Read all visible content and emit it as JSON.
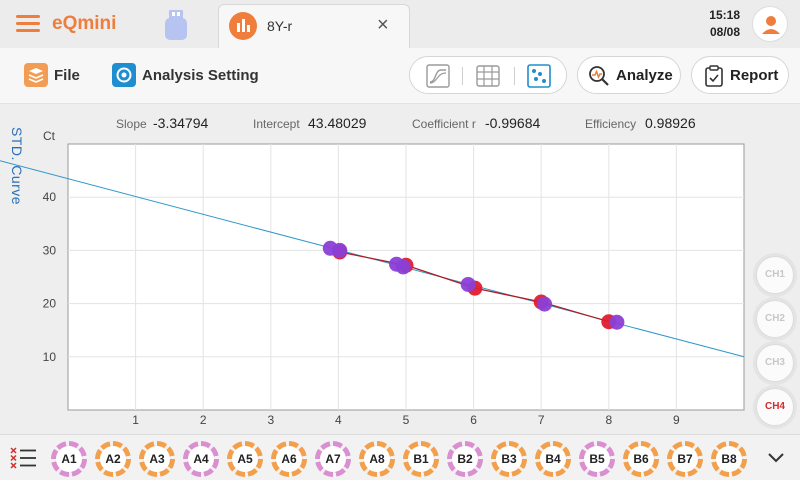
{
  "app": {
    "name": "eQmini"
  },
  "tab": {
    "label": "8Y-r",
    "close_icon": "×"
  },
  "clock": {
    "time": "15:18",
    "date": "08/08"
  },
  "toolbar": {
    "file_label": "File",
    "analysis_setting_label": "Analysis Setting",
    "analyze_label": "Analyze",
    "report_label": "Report",
    "views": [
      "amplification-curve-icon",
      "table-view-icon",
      "std-curve-view-icon"
    ]
  },
  "side_title": "STD. Curve",
  "stats": {
    "slope_label": "Slope",
    "slope_value": "-3.34794",
    "intercept_label": "Intercept",
    "intercept_value": "43.48029",
    "coefficient_label": "Coefficient r",
    "coefficient_value": "-0.99684",
    "efficiency_label": "Efficiency",
    "efficiency_value": "0.98926"
  },
  "channels": [
    {
      "label": "CH1",
      "active": false
    },
    {
      "label": "CH2",
      "active": false
    },
    {
      "label": "CH3",
      "active": false
    },
    {
      "label": "CH4",
      "active": true
    }
  ],
  "wells": [
    {
      "label": "A1",
      "ring": "#d98fd0"
    },
    {
      "label": "A2",
      "ring": "#f3a04e"
    },
    {
      "label": "A3",
      "ring": "#f3a04e"
    },
    {
      "label": "A4",
      "ring": "#d98fd0"
    },
    {
      "label": "A5",
      "ring": "#f3a04e"
    },
    {
      "label": "A6",
      "ring": "#f3a04e"
    },
    {
      "label": "A7",
      "ring": "#d98fd0"
    },
    {
      "label": "A8",
      "ring": "#f3a04e"
    },
    {
      "label": "B1",
      "ring": "#f3a04e"
    },
    {
      "label": "B2",
      "ring": "#d98fd0"
    },
    {
      "label": "B3",
      "ring": "#f3a04e"
    },
    {
      "label": "B4",
      "ring": "#f3a04e"
    },
    {
      "label": "B5",
      "ring": "#d98fd0"
    },
    {
      "label": "B6",
      "ring": "#f3a04e"
    },
    {
      "label": "B7",
      "ring": "#f3a04e"
    },
    {
      "label": "B8",
      "ring": "#f3a04e"
    }
  ],
  "colors": {
    "accent": "#ef7d3c",
    "fit_line": "#2f98c8",
    "red_series": "#e01e2e",
    "purple_series": "#8a3fd6",
    "red_line": "#b01b24"
  },
  "chart_data": {
    "type": "scatter",
    "ylabel": "Ct",
    "xlim": [
      0,
      10
    ],
    "ylim": [
      0,
      50
    ],
    "xticks": [
      1,
      2,
      3,
      4,
      5,
      6,
      7,
      8,
      9
    ],
    "yticks": [
      10,
      20,
      30,
      40
    ],
    "grid": true,
    "fit_line": {
      "slope": -3.34794,
      "intercept": 43.48029
    },
    "series": [
      {
        "color": "red",
        "points": [
          [
            4.02,
            29.7
          ],
          [
            5.0,
            27.2
          ],
          [
            6.02,
            22.9
          ],
          [
            7.0,
            20.3
          ],
          [
            8.0,
            16.6
          ]
        ]
      },
      {
        "color": "purple",
        "points": [
          [
            3.88,
            30.4
          ],
          [
            4.02,
            30.0
          ],
          [
            4.86,
            27.4
          ],
          [
            4.96,
            26.9
          ],
          [
            5.92,
            23.6
          ],
          [
            7.05,
            19.9
          ],
          [
            8.12,
            16.5
          ]
        ]
      }
    ]
  }
}
